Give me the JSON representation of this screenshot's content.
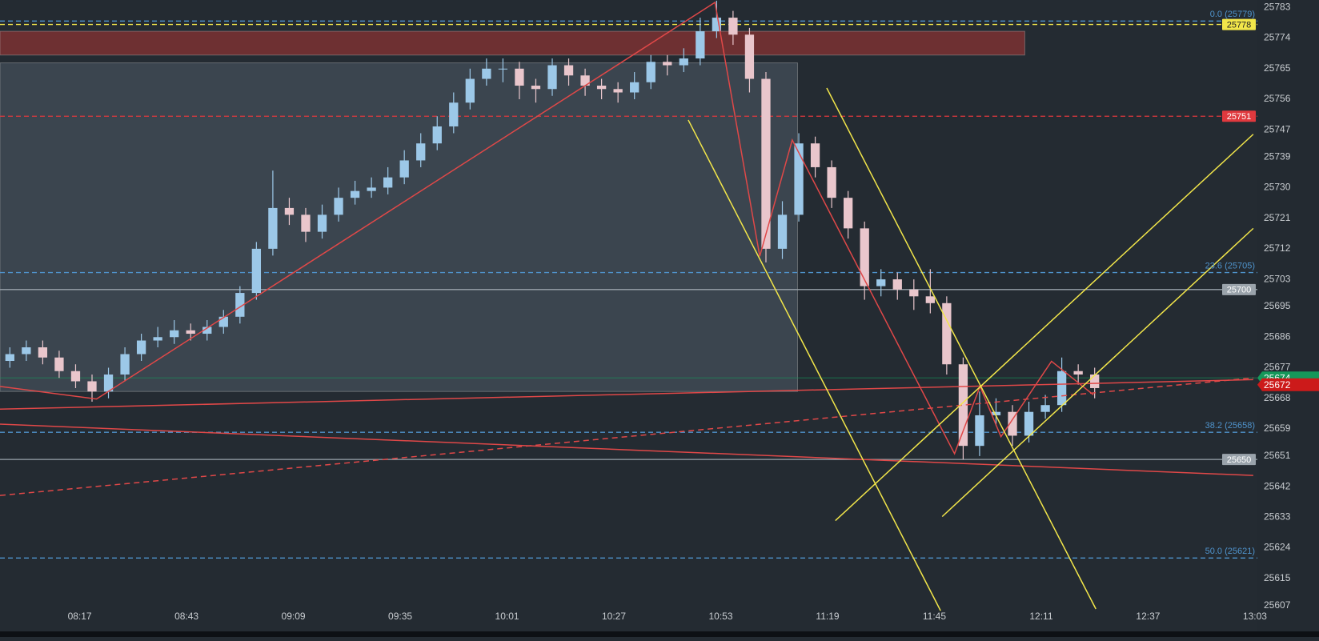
{
  "chart_data": {
    "type": "candlestick",
    "x": [
      480,
      484,
      488,
      492,
      496,
      500,
      504,
      508,
      512,
      516,
      520,
      524,
      528,
      532,
      536,
      540,
      544,
      548,
      552,
      556,
      560,
      564,
      568,
      572,
      576,
      580,
      584,
      588,
      592,
      596,
      600,
      604,
      608,
      612,
      616,
      620,
      624,
      628,
      632,
      636,
      640,
      644,
      648,
      652,
      656,
      660,
      664,
      668,
      672,
      676,
      680,
      684,
      688,
      692,
      696,
      700,
      704,
      708,
      712,
      716,
      720,
      724,
      728,
      732,
      736,
      740,
      744
    ],
    "open": [
      25679,
      25681,
      25683,
      25680,
      25676,
      25673,
      25670,
      25675,
      25681,
      25685,
      25686,
      25688,
      25687,
      25689,
      25692,
      25699,
      25712,
      25724,
      25722,
      25717,
      25722,
      25727,
      25729,
      25730,
      25733,
      25738,
      25743,
      25748,
      25755,
      25762,
      25765,
      25765,
      25760,
      25759,
      25766,
      25763,
      25760,
      25759,
      25758,
      25761,
      25767,
      25766,
      25768,
      25776,
      25780,
      25775,
      25762,
      25712,
      25722,
      25743,
      25736,
      25727,
      25718,
      25701,
      25703,
      25700,
      25698,
      25696,
      25678,
      25654,
      25663,
      25664,
      25657,
      25664,
      25666,
      25676,
      25675
    ],
    "high": [
      25683,
      25685,
      25685,
      25682,
      25678,
      25675,
      25677,
      25683,
      25687,
      25689,
      25691,
      25690,
      25691,
      25694,
      25701,
      25714,
      25735,
      25727,
      25724,
      25725,
      25730,
      25732,
      25733,
      25736,
      25741,
      25746,
      25751,
      25758,
      25765,
      25768,
      25768,
      25767,
      25762,
      25768,
      25768,
      25765,
      25762,
      25761,
      25764,
      25769,
      25769,
      25771,
      25780,
      25785,
      25782,
      25777,
      25764,
      25726,
      25746,
      25745,
      25738,
      25729,
      25720,
      25706,
      25705,
      25703,
      25706,
      25698,
      25680,
      25670,
      25668,
      25666,
      25667,
      25669,
      25680,
      25678,
      25677
    ],
    "low": [
      25677,
      25679,
      25678,
      25674,
      25671,
      25667,
      25668,
      25673,
      25679,
      25683,
      25684,
      25685,
      25685,
      25687,
      25690,
      25697,
      25710,
      25719,
      25714,
      25715,
      25720,
      25725,
      25727,
      25728,
      25731,
      25736,
      25741,
      25746,
      25753,
      25760,
      25761,
      25756,
      25755,
      25757,
      25760,
      25757,
      25756,
      25755,
      25756,
      25759,
      25763,
      25764,
      25766,
      25774,
      25772,
      25758,
      25708,
      25709,
      25720,
      25733,
      25724,
      25715,
      25697,
      25698,
      25697,
      25694,
      25693,
      25675,
      25650,
      25651,
      25660,
      25654,
      25655,
      25662,
      25664,
      25672,
      25668
    ],
    "close": [
      25681,
      25683,
      25680,
      25676,
      25673,
      25670,
      25675,
      25681,
      25685,
      25686,
      25688,
      25687,
      25689,
      25692,
      25699,
      25712,
      25724,
      25722,
      25717,
      25722,
      25727,
      25729,
      25730,
      25733,
      25738,
      25743,
      25748,
      25755,
      25762,
      25765,
      25765,
      25760,
      25759,
      25766,
      25763,
      25760,
      25759,
      25758,
      25761,
      25767,
      25766,
      25768,
      25776,
      25780,
      25775,
      25762,
      25712,
      25722,
      25743,
      25736,
      25727,
      25718,
      25701,
      25703,
      25700,
      25698,
      25696,
      25678,
      25654,
      25663,
      25664,
      25657,
      25664,
      25666,
      25676,
      25675,
      25671
    ],
    "up_color": "#9cc8e8",
    "down_color": "#e9c6cc",
    "xlim": [
      477.6,
      783.6
    ],
    "xticks": [
      {
        "value": 497,
        "label": "08:17"
      },
      {
        "value": 523,
        "label": "08:43"
      },
      {
        "value": 549,
        "label": "09:09"
      },
      {
        "value": 575,
        "label": "09:35"
      },
      {
        "value": 601,
        "label": "10:01"
      },
      {
        "value": 627,
        "label": "10:27"
      },
      {
        "value": 653,
        "label": "10:53"
      },
      {
        "value": 679,
        "label": "11:19"
      },
      {
        "value": 705,
        "label": "11:45"
      },
      {
        "value": 731,
        "label": "12:11"
      },
      {
        "value": 757,
        "label": "12:37"
      },
      {
        "value": 783,
        "label": "13:03"
      }
    ],
    "ylim": [
      25602,
      25785.2
    ],
    "yticks": [
      25783,
      25774,
      25765,
      25756,
      25747,
      25739,
      25730,
      25721,
      25712,
      25703,
      25695,
      25686,
      25677,
      25668,
      25659,
      25651,
      25642,
      25633,
      25624,
      25615,
      25607
    ],
    "zones": [
      {
        "x": [
          477.6,
          727
        ],
        "y": [
          25769,
          25776
        ],
        "color": "rgba(150,50,50,0.65)"
      },
      {
        "x": [
          477.6,
          671.7
        ],
        "y": [
          25670,
          25766.7
        ],
        "color": "rgba(120,138,155,0.28)"
      }
    ],
    "levels": [
      {
        "price": 25779,
        "label": "0.0 (25779)",
        "color": "#4f93cc",
        "style": "dashed",
        "tag": "text"
      },
      {
        "price": 25778,
        "label": "25778",
        "color": "#f2e64a",
        "style": "dashed",
        "tag": "box",
        "text_color": "#222"
      },
      {
        "price": 25751,
        "label": "25751",
        "color": "#e0393e",
        "style": "dashed",
        "tag": "box",
        "text_color": "#fff"
      },
      {
        "price": 25705,
        "label": "23.6 (25705)",
        "color": "#4f93cc",
        "style": "dashed",
        "tag": "text"
      },
      {
        "price": 25700,
        "label": "25700",
        "color": "#9aa3ab",
        "style": "solid",
        "tag": "box",
        "text_color": "#fff"
      },
      {
        "price": 25658,
        "label": "38.2 (25658)",
        "color": "#4f93cc",
        "style": "dashed",
        "tag": "text"
      },
      {
        "price": 25650,
        "label": "25650",
        "color": "#9aa3ab",
        "style": "solid",
        "tag": "box",
        "text_color": "#fff"
      },
      {
        "price": 25621,
        "label": "50.0 (25621)",
        "color": "#4f93cc",
        "style": "dashed",
        "tag": "text"
      },
      {
        "price": 25674,
        "label": "25674",
        "color": "#15985a",
        "style": "faint",
        "tag": "axis",
        "text_color": "#fff"
      },
      {
        "price": 25672,
        "label": "25672",
        "color": "#cc1a1a",
        "style": "none",
        "tag": "axis",
        "text_color": "#fff"
      }
    ],
    "lines": [
      {
        "x": [
          477.6,
          501.1,
          651.6,
          662.5,
          670.4,
          709.9,
          716.1,
          721.2,
          733.5,
          743.7
        ],
        "y": [
          25671.5,
          25667.8,
          25784.5,
          25709.8,
          25744,
          25651.7,
          25671.5,
          25656.7,
          25678.9,
          25669
        ],
        "color": "#e04848",
        "dashed": false
      },
      {
        "x": [
          477.6,
          782.6
        ],
        "y": [
          25664.8,
          25673.5
        ],
        "color": "#e04848",
        "dashed": false
      },
      {
        "x": [
          477.6,
          782.6
        ],
        "y": [
          25660.4,
          25645.3
        ],
        "color": "#e04848",
        "dashed": false
      },
      {
        "x": [
          477.6,
          782.6
        ],
        "y": [
          25639.4,
          25674
        ],
        "color": "#e04848",
        "dashed": true
      },
      {
        "x": [
          645.1,
          706.5
        ],
        "y": [
          25749.9,
          25605.5
        ],
        "color": "#f2e64a",
        "dashed": false
      },
      {
        "x": [
          678.8,
          744.3
        ],
        "y": [
          25759.3,
          25606
        ],
        "color": "#f2e64a",
        "dashed": false
      },
      {
        "x": [
          680.9,
          782.6
        ],
        "y": [
          25632,
          25745.7
        ],
        "color": "#f2e64a",
        "dashed": false
      },
      {
        "x": [
          706.9,
          782.6
        ],
        "y": [
          25633.2,
          25718
        ],
        "color": "#f2e64a",
        "dashed": false
      }
    ]
  }
}
